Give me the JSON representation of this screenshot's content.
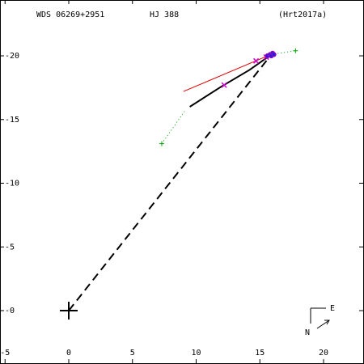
{
  "header": {
    "system_id": "WDS 06269+2951",
    "discoverer": "HJ  388",
    "reference": "(Hrt2017a)"
  },
  "compass": {
    "east_label": "E",
    "north_label": "N"
  },
  "chart_data": {
    "type": "scatter",
    "xlim": [
      -5,
      23
    ],
    "ylim": [
      -5,
      23
    ],
    "x_ticks": [
      {
        "value": -5,
        "label": "-5"
      },
      {
        "value": 0,
        "label": "0"
      },
      {
        "value": 5,
        "label": "5"
      },
      {
        "value": 10,
        "label": "10"
      },
      {
        "value": 15,
        "label": "15"
      },
      {
        "value": 20,
        "label": "20"
      }
    ],
    "y_ticks": [
      {
        "value": 20,
        "label": "-20"
      },
      {
        "value": 15,
        "label": "-15"
      },
      {
        "value": 10,
        "label": "-10"
      },
      {
        "value": 5,
        "label": "-5"
      },
      {
        "value": 0,
        "label": "-0"
      },
      {
        "value": -5,
        "label": "-5"
      }
    ],
    "primary": [
      0,
      0
    ],
    "dashed_line_to_latest": [
      [
        0,
        0
      ],
      [
        15.9,
        20.1
      ]
    ],
    "black_orbit_arc": [
      [
        9.5,
        16.0
      ],
      [
        12.0,
        17.6
      ],
      [
        14.2,
        18.9
      ],
      [
        15.9,
        20.1
      ]
    ],
    "red_fit_line": [
      [
        9.0,
        17.2
      ],
      [
        16.1,
        20.2
      ]
    ],
    "green_dotted_paths": [
      [
        [
          7.3,
          13.1
        ],
        [
          9.2,
          15.8
        ]
      ],
      [
        [
          15.9,
          20.1
        ],
        [
          17.8,
          20.4
        ]
      ]
    ],
    "green_plus_points": [
      {
        "x": 7.3,
        "y": 13.1
      },
      {
        "x": 17.8,
        "y": 20.4
      }
    ],
    "magenta_x_points": [
      {
        "x": 12.2,
        "y": 17.7
      },
      {
        "x": 14.7,
        "y": 19.6
      },
      {
        "x": 15.5,
        "y": 19.9
      }
    ],
    "blue_measurements": [
      {
        "x": 15.6,
        "y": 20.0
      },
      {
        "x": 15.8,
        "y": 20.1
      },
      {
        "x": 16.0,
        "y": 20.2
      },
      {
        "x": 15.9,
        "y": 20.0
      },
      {
        "x": 16.1,
        "y": 20.1
      }
    ]
  }
}
